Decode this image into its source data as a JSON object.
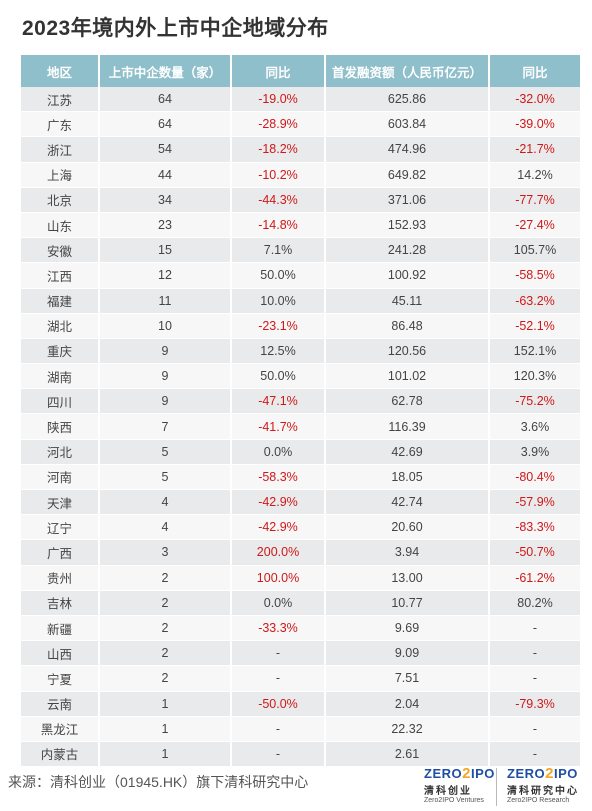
{
  "title": "2023年境内外上市中企地域分布",
  "table": {
    "headers": [
      "地区",
      "上市中企数量（家）",
      "同比",
      "首发融资额（人民币亿元）",
      "同比"
    ],
    "rows": [
      [
        "江苏",
        "64",
        "-19.0%",
        "625.86",
        "-32.0%"
      ],
      [
        "广东",
        "64",
        "-28.9%",
        "603.84",
        "-39.0%"
      ],
      [
        "浙江",
        "54",
        "-18.2%",
        "474.96",
        "-21.7%"
      ],
      [
        "上海",
        "44",
        "-10.2%",
        "649.82",
        "14.2%"
      ],
      [
        "北京",
        "34",
        "-44.3%",
        "371.06",
        "-77.7%"
      ],
      [
        "山东",
        "23",
        "-14.8%",
        "152.93",
        "-27.4%"
      ],
      [
        "安徽",
        "15",
        "7.1%",
        "241.28",
        "105.7%"
      ],
      [
        "江西",
        "12",
        "50.0%",
        "100.92",
        "-58.5%"
      ],
      [
        "福建",
        "11",
        "10.0%",
        "45.11",
        "-63.2%"
      ],
      [
        "湖北",
        "10",
        "-23.1%",
        "86.48",
        "-52.1%"
      ],
      [
        "重庆",
        "9",
        "12.5%",
        "120.56",
        "152.1%"
      ],
      [
        "湖南",
        "9",
        "50.0%",
        "101.02",
        "120.3%"
      ],
      [
        "四川",
        "9",
        "-47.1%",
        "62.78",
        "-75.2%"
      ],
      [
        "陕西",
        "7",
        "-41.7%",
        "116.39",
        "3.6%"
      ],
      [
        "河北",
        "5",
        "0.0%",
        "42.69",
        "3.9%"
      ],
      [
        "河南",
        "5",
        "-58.3%",
        "18.05",
        "-80.4%"
      ],
      [
        "天津",
        "4",
        "-42.9%",
        "42.74",
        "-57.9%"
      ],
      [
        "辽宁",
        "4",
        "-42.9%",
        "20.60",
        "-83.3%"
      ],
      [
        "广西",
        "3",
        "200.0%",
        "3.94",
        "-50.7%"
      ],
      [
        "贵州",
        "2",
        "100.0%",
        "13.00",
        "-61.2%"
      ],
      [
        "吉林",
        "2",
        "0.0%",
        "10.77",
        "80.2%"
      ],
      [
        "新疆",
        "2",
        "-33.3%",
        "9.69",
        "-"
      ],
      [
        "山西",
        "2",
        "-",
        "9.09",
        "-"
      ],
      [
        "宁夏",
        "2",
        "-",
        "7.51",
        "-"
      ],
      [
        "云南",
        "1",
        "-50.0%",
        "2.04",
        "-79.3%"
      ],
      [
        "黑龙江",
        "1",
        "-",
        "22.32",
        "-"
      ],
      [
        "内蒙古",
        "1",
        "-",
        "2.61",
        "-"
      ]
    ],
    "red_cells": [
      [
        0,
        2
      ],
      [
        0,
        4
      ],
      [
        1,
        2
      ],
      [
        1,
        4
      ],
      [
        2,
        2
      ],
      [
        2,
        4
      ],
      [
        3,
        2
      ],
      [
        4,
        2
      ],
      [
        4,
        4
      ],
      [
        5,
        2
      ],
      [
        5,
        4
      ],
      [
        7,
        4
      ],
      [
        8,
        4
      ],
      [
        9,
        2
      ],
      [
        9,
        4
      ],
      [
        12,
        2
      ],
      [
        12,
        4
      ],
      [
        13,
        2
      ],
      [
        15,
        2
      ],
      [
        15,
        4
      ],
      [
        16,
        2
      ],
      [
        16,
        4
      ],
      [
        17,
        2
      ],
      [
        17,
        4
      ],
      [
        18,
        2
      ],
      [
        18,
        4
      ],
      [
        19,
        2
      ],
      [
        19,
        4
      ],
      [
        21,
        2
      ],
      [
        24,
        2
      ],
      [
        24,
        4
      ]
    ]
  },
  "colors": {
    "header_bg": "#8fbfca",
    "row_odd": "#e9eaec",
    "row_even": "#f7f7f8",
    "negative": "#d01818"
  },
  "source": "来源：清科创业（01945.HK）旗下清科研究中心",
  "logos": [
    {
      "brand_left": "ZERO",
      "brand_mid": "2",
      "brand_right": "IPO",
      "cn": "清科创业",
      "en": "Zero2IPO Ventures"
    },
    {
      "brand_left": "ZERO",
      "brand_mid": "2",
      "brand_right": "IPO",
      "cn": "清科研究中心",
      "en": "Zero2IPO Research"
    }
  ]
}
